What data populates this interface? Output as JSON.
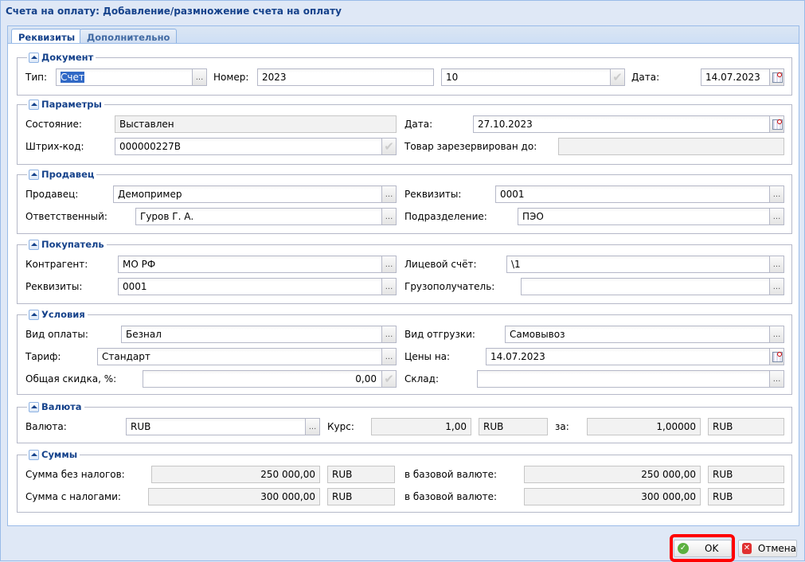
{
  "window": {
    "title": "Счета на оплату: Добавление/размножение счета на оплату"
  },
  "tabs": [
    {
      "label": "Реквизиты",
      "active": true
    },
    {
      "label": "Дополнительно",
      "active": false
    }
  ],
  "sections": [
    {
      "title": "Документ",
      "fields": [
        {
          "label": "Тип:",
          "value": "Счет",
          "trigger": "ellipsis",
          "selected": true
        },
        {
          "label": "Номер:",
          "value": "2023"
        },
        {
          "label": "",
          "value": "10",
          "trigger": "check"
        },
        {
          "label": "Дата:",
          "value": "14.07.2023",
          "trigger": "calendar"
        }
      ]
    },
    {
      "title": "Параметры",
      "fields": [
        {
          "label": "Состояние:",
          "value": "Выставлен",
          "readonly": true
        },
        {
          "label": "Дата:",
          "value": "27.10.2023",
          "trigger": "calendar"
        },
        {
          "label": "Штрих-код:",
          "value": "000000227B",
          "trigger": "check"
        },
        {
          "label": "Товар зарезервирован до:",
          "value": "",
          "readonly": true
        }
      ]
    },
    {
      "title": "Продавец",
      "fields": [
        {
          "label": "Продавец:",
          "value": "Демопример",
          "trigger": "ellipsis"
        },
        {
          "label": "Реквизиты:",
          "value": "0001",
          "trigger": "ellipsis"
        },
        {
          "label": "Ответственный:",
          "value": "Гуров Г. А.",
          "trigger": "ellipsis"
        },
        {
          "label": "Подразделение:",
          "value": "ПЭО",
          "trigger": "ellipsis"
        }
      ]
    },
    {
      "title": "Покупатель",
      "fields": [
        {
          "label": "Контрагент:",
          "value": "МО РФ",
          "trigger": "ellipsis"
        },
        {
          "label": "Лицевой счёт:",
          "value": "\\1",
          "trigger": "ellipsis"
        },
        {
          "label": "Реквизиты:",
          "value": "0001",
          "trigger": "ellipsis"
        },
        {
          "label": "Грузополучатель:",
          "value": "",
          "trigger": "ellipsis"
        }
      ]
    },
    {
      "title": "Условия",
      "fields": [
        {
          "label": "Вид оплаты:",
          "value": "Безнал",
          "trigger": "ellipsis"
        },
        {
          "label": "Вид отгрузки:",
          "value": "Самовывоз",
          "trigger": "ellipsis"
        },
        {
          "label": "Тариф:",
          "value": "Стандарт",
          "trigger": "ellipsis"
        },
        {
          "label": "Цены на:",
          "value": "14.07.2023",
          "trigger": "calendar"
        },
        {
          "label": "Общая скидка, %:",
          "value": "0,00",
          "trigger": "check"
        },
        {
          "label": "Склад:",
          "value": "",
          "trigger": "ellipsis"
        }
      ]
    },
    {
      "title": "Валюта",
      "fields": [
        {
          "label": "Валюта:",
          "value": "RUB",
          "trigger": "ellipsis"
        },
        {
          "label": "Курс:",
          "value": "1,00",
          "readonly": true
        },
        {
          "label": "",
          "value": "RUB",
          "readonly": true
        },
        {
          "label": "за:",
          "value": "1,00000",
          "readonly": true
        },
        {
          "label": "",
          "value": "RUB",
          "readonly": true
        }
      ]
    },
    {
      "title": "Суммы",
      "fields": [
        {
          "label": "Сумма без налогов:",
          "value": "250 000,00",
          "readonly": true
        },
        {
          "label": "",
          "value": "RUB",
          "readonly": true
        },
        {
          "label": "в базовой валюте:",
          "value": "250 000,00",
          "readonly": true
        },
        {
          "label": "",
          "value": "RUB",
          "readonly": true
        },
        {
          "label": "Сумма с налогами:",
          "value": "300 000,00",
          "readonly": true
        },
        {
          "label": "",
          "value": "RUB",
          "readonly": true
        },
        {
          "label": "в базовой валюте:",
          "value": "300 000,00",
          "readonly": true
        },
        {
          "label": "",
          "value": "RUB",
          "readonly": true
        }
      ]
    }
  ],
  "buttons": {
    "ok": "OK",
    "cancel": "Отмена"
  },
  "colors": {
    "highlight": "#ff0000",
    "title": "#15428b"
  }
}
